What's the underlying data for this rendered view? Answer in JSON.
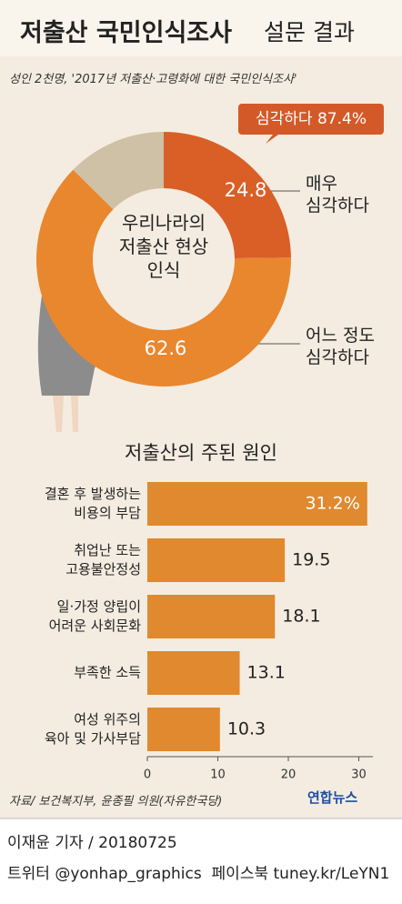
{
  "header": {
    "title": "저출산 국민인식조사",
    "title_suffix": "설문 결과",
    "subtitle": "성인 2천명, '2017년 저출산·고령화에 대한 국민인식조사'"
  },
  "chart_data": [
    {
      "type": "donut",
      "center_label": "우리나라의\n저출산 현상\n인식",
      "annotation": "심각하다 87.4%",
      "categories": [
        "매우\n심각하다",
        "어느 정도\n심각하다",
        null
      ],
      "values": [
        24.8,
        62.6,
        12.6
      ],
      "colors": [
        "#d95f27",
        "#e8872e",
        "#cfc1a6"
      ]
    },
    {
      "type": "hbar",
      "title": "저출산의 주된 원인",
      "categories": [
        "결혼 후 발생하는\n비용의 부담",
        "취업난 또는\n고용불안정성",
        "일·가정 양립이\n어려운 사회문화",
        "부족한 소득",
        "여성 위주의\n육아 및 가사부담"
      ],
      "values": [
        31.2,
        19.5,
        18.1,
        13.1,
        10.3
      ],
      "value_labels": [
        "31.2%",
        "19.5",
        "18.1",
        "13.1",
        "10.3"
      ],
      "color": "#e0892e",
      "xlim": [
        0,
        32
      ],
      "xticks": [
        0,
        10,
        20,
        30
      ],
      "grid": false
    }
  ],
  "source": "자료/ 보건복지부, 윤종필 의원(자유한국당)",
  "logo": "연합뉴스",
  "footer": {
    "byline": "이재윤 기자 / 20180725",
    "social": "트위터 @yonhap_graphics  페이스북 tuney.kr/LeYN1"
  }
}
